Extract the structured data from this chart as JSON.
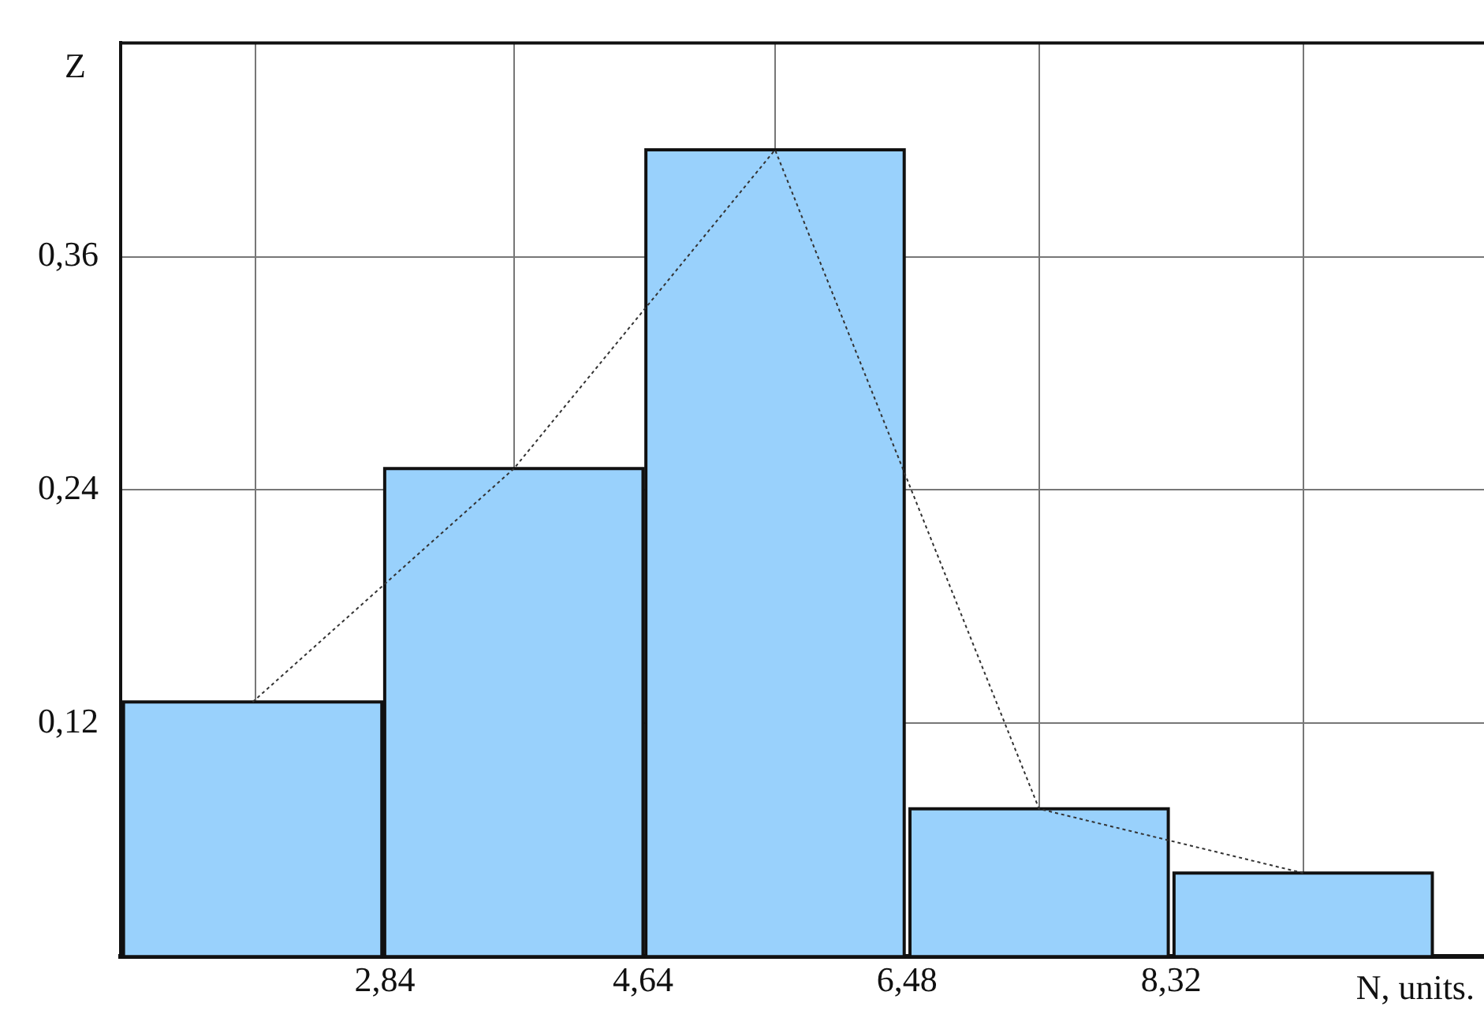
{
  "chart_data": {
    "type": "histogram",
    "xlabel": "N, units.",
    "ylabel": "Z",
    "bins": [
      1.0,
      2.84,
      4.64,
      6.48,
      8.32,
      10.16
    ],
    "values": [
      0.131,
      0.251,
      0.415,
      0.076,
      0.043
    ],
    "color": "#99d1fc",
    "series": [
      {
        "type": "line",
        "x": [
          1.92,
          3.74,
          5.56,
          7.4,
          9.24
        ],
        "values": [
          0.131,
          0.251,
          0.415,
          0.076,
          0.043
        ],
        "color": "#333333",
        "line_style": "dotted",
        "marker": "none"
      }
    ],
    "xlim": [
      1.0,
      10.5
    ],
    "ylim": [
      0,
      0.47
    ],
    "xticks": [
      {
        "value": 2.84,
        "label": "2,84"
      },
      {
        "value": 4.64,
        "label": "4,64"
      },
      {
        "value": 6.48,
        "label": "6,48"
      },
      {
        "value": 8.32,
        "label": "8,32"
      }
    ],
    "yticks": [
      {
        "value": 0.12,
        "label": "0,12"
      },
      {
        "value": 0.24,
        "label": "0,24"
      },
      {
        "value": 0.36,
        "label": "0,36"
      }
    ],
    "grid": true,
    "legend": false
  }
}
